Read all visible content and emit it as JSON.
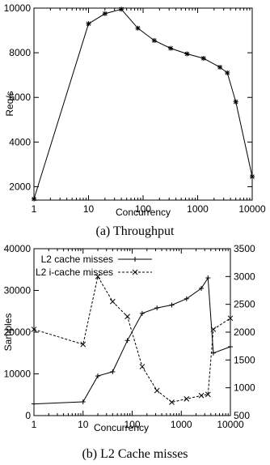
{
  "chart_data": [
    {
      "type": "line",
      "caption": "(a)  Throughput",
      "xlabel": "Concurrency",
      "ylabel": "Req/s",
      "xscale": "log",
      "xlim": [
        1,
        10000
      ],
      "ylim": [
        1400,
        10000
      ],
      "xticks": [
        1,
        10,
        100,
        1000,
        10000
      ],
      "yticks": [
        2000,
        4000,
        6000,
        8000,
        10000
      ],
      "grid": false,
      "series": [
        {
          "marker": "star",
          "x": [
            1,
            10,
            20,
            40,
            80,
            160,
            320,
            640,
            1280,
            2560,
            3500,
            5000,
            10000
          ],
          "y": [
            1450,
            9300,
            9750,
            9950,
            9100,
            8550,
            8200,
            7950,
            7750,
            7350,
            7100,
            5800,
            2450
          ]
        }
      ]
    },
    {
      "type": "line",
      "caption": "(b)  L2 Cache misses",
      "xlabel": "Concurrency",
      "ylabel": "Samples",
      "xscale": "log",
      "xlim": [
        1,
        10000
      ],
      "ylim": [
        0,
        40000
      ],
      "y2lim": [
        500,
        3500
      ],
      "xticks": [
        1,
        10,
        100,
        1000,
        10000
      ],
      "yticks": [
        0,
        10000,
        20000,
        30000,
        40000
      ],
      "y2ticks": [
        500,
        1000,
        1500,
        2000,
        2500,
        3000,
        3500
      ],
      "grid": false,
      "legend_position": "top-left",
      "series": [
        {
          "name": "L2 cache misses",
          "axis": "left",
          "marker": "plus",
          "style": "solid",
          "x": [
            1,
            10,
            20,
            40,
            80,
            160,
            320,
            640,
            1280,
            2560,
            3500,
            4500,
            10000
          ],
          "y": [
            2800,
            3300,
            9500,
            10500,
            18000,
            24500,
            25800,
            26500,
            28000,
            30500,
            33000,
            15000,
            16500
          ]
        },
        {
          "name": "L2 i-cache misses",
          "axis": "right",
          "marker": "x",
          "style": "dashed",
          "x": [
            1,
            10,
            20,
            40,
            80,
            160,
            320,
            640,
            1280,
            2560,
            3500,
            4500,
            10000
          ],
          "y": [
            2050,
            1780,
            3000,
            2550,
            2280,
            1380,
            950,
            740,
            800,
            860,
            880,
            2050,
            2250
          ]
        }
      ]
    }
  ]
}
